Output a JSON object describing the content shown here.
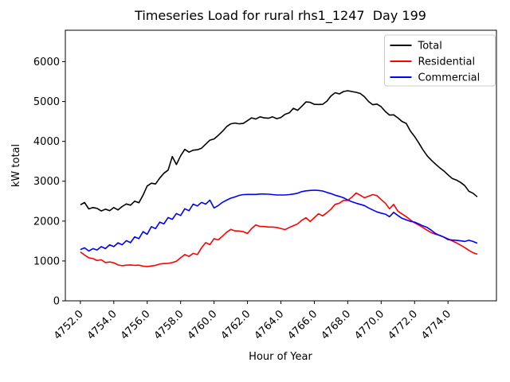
{
  "window": {
    "title": "Timeseries Load for rural rhs1_1247  Day 199"
  },
  "colors": {
    "background": "#ffffff",
    "axes": "#000000",
    "legend_border": "#cccccc",
    "total": "#000000",
    "residential": "#ff0000",
    "commercial": "#0000ff"
  },
  "chart_data": {
    "type": "line",
    "title": "Timeseries Load for rural rhs1_1247  Day 199",
    "xlabel": "Hour of Year",
    "ylabel": "kW total",
    "xlim": [
      4751.1,
      4776.9
    ],
    "ylim": [
      0,
      6788
    ],
    "grid": false,
    "x_ticks": [
      4752,
      4754,
      4756,
      4758,
      4760,
      4762,
      4764,
      4766,
      4768,
      4770,
      4772,
      4774
    ],
    "x_tick_labels": [
      "4752.0",
      "4754.0",
      "4756.0",
      "4758.0",
      "4760.0",
      "4762.0",
      "4764.0",
      "4766.0",
      "4768.0",
      "4770.0",
      "4772.0",
      "4774.0"
    ],
    "x_tick_rotation": 45,
    "y_ticks": [
      0,
      1000,
      2000,
      3000,
      4000,
      5000,
      6000
    ],
    "y_tick_labels": [
      "0",
      "1000",
      "2000",
      "3000",
      "4000",
      "5000",
      "6000"
    ],
    "legend": {
      "position": "upper right",
      "entries": [
        "Total",
        "Residential",
        "Commercial"
      ]
    },
    "hours": [
      4752.0,
      4752.25,
      4752.5,
      4752.75,
      4753.0,
      4753.25,
      4753.5,
      4753.75,
      4754.0,
      4754.25,
      4754.5,
      4754.75,
      4755.0,
      4755.25,
      4755.5,
      4755.75,
      4756.0,
      4756.25,
      4756.5,
      4756.75,
      4757.0,
      4757.25,
      4757.5,
      4757.75,
      4758.0,
      4758.25,
      4758.5,
      4758.75,
      4759.0,
      4759.25,
      4759.5,
      4759.75,
      4760.0,
      4760.25,
      4760.5,
      4760.75,
      4761.0,
      4761.25,
      4761.5,
      4761.75,
      4762.0,
      4762.25,
      4762.5,
      4762.75,
      4763.0,
      4763.25,
      4763.5,
      4763.75,
      4764.0,
      4764.25,
      4764.5,
      4764.75,
      4765.0,
      4765.25,
      4765.5,
      4765.75,
      4766.0,
      4766.25,
      4766.5,
      4766.75,
      4767.0,
      4767.25,
      4767.5,
      4767.75,
      4768.0,
      4768.25,
      4768.5,
      4768.75,
      4769.0,
      4769.25,
      4769.5,
      4769.75,
      4770.0,
      4770.25,
      4770.5,
      4770.75,
      4771.0,
      4771.25,
      4771.5,
      4771.75,
      4772.0,
      4772.25,
      4772.5,
      4772.75,
      4773.0,
      4773.25,
      4773.5,
      4773.75,
      4774.0,
      4774.25,
      4774.5,
      4774.75,
      4775.0,
      4775.25,
      4775.5,
      4775.75
    ],
    "series": [
      {
        "name": "Total",
        "color": "#000000",
        "values": [
          2410,
          2465,
          2305,
          2340,
          2320,
          2255,
          2300,
          2260,
          2340,
          2280,
          2365,
          2430,
          2400,
          2500,
          2460,
          2650,
          2880,
          2950,
          2930,
          3080,
          3200,
          3280,
          3620,
          3420,
          3640,
          3800,
          3730,
          3780,
          3790,
          3830,
          3930,
          4030,
          4060,
          4150,
          4250,
          4370,
          4440,
          4460,
          4440,
          4450,
          4520,
          4590,
          4560,
          4615,
          4590,
          4580,
          4615,
          4570,
          4600,
          4680,
          4715,
          4830,
          4780,
          4880,
          4990,
          4980,
          4930,
          4925,
          4930,
          5010,
          5140,
          5220,
          5190,
          5250,
          5270,
          5250,
          5230,
          5200,
          5120,
          5000,
          4920,
          4935,
          4870,
          4750,
          4660,
          4665,
          4590,
          4500,
          4450,
          4260,
          4120,
          3960,
          3790,
          3640,
          3530,
          3430,
          3340,
          3260,
          3160,
          3070,
          3030,
          2970,
          2890,
          2750,
          2700,
          2610
        ]
      },
      {
        "name": "Residential",
        "color": "#ff0000",
        "values": [
          1225,
          1150,
          1080,
          1060,
          1010,
          1030,
          960,
          975,
          955,
          900,
          880,
          895,
          900,
          890,
          895,
          870,
          860,
          875,
          890,
          925,
          935,
          940,
          960,
          995,
          1080,
          1160,
          1115,
          1190,
          1160,
          1330,
          1460,
          1410,
          1560,
          1530,
          1620,
          1720,
          1790,
          1755,
          1750,
          1735,
          1690,
          1815,
          1905,
          1865,
          1865,
          1850,
          1850,
          1840,
          1815,
          1785,
          1840,
          1885,
          1930,
          2020,
          2085,
          1990,
          2085,
          2185,
          2130,
          2210,
          2300,
          2420,
          2450,
          2520,
          2520,
          2600,
          2705,
          2650,
          2585,
          2625,
          2665,
          2640,
          2540,
          2450,
          2310,
          2420,
          2250,
          2180,
          2110,
          2030,
          1955,
          1900,
          1840,
          1770,
          1710,
          1670,
          1645,
          1600,
          1555,
          1505,
          1455,
          1395,
          1335,
          1265,
          1205,
          1170
        ]
      },
      {
        "name": "Commercial",
        "color": "#0000ff",
        "values": [
          1285,
          1330,
          1250,
          1310,
          1275,
          1360,
          1310,
          1405,
          1360,
          1455,
          1405,
          1510,
          1460,
          1605,
          1560,
          1735,
          1670,
          1860,
          1810,
          1975,
          1930,
          2090,
          2045,
          2190,
          2140,
          2310,
          2260,
          2425,
          2380,
          2470,
          2425,
          2525,
          2330,
          2390,
          2470,
          2525,
          2575,
          2605,
          2645,
          2665,
          2670,
          2670,
          2670,
          2680,
          2680,
          2675,
          2665,
          2655,
          2655,
          2655,
          2665,
          2680,
          2700,
          2740,
          2760,
          2770,
          2775,
          2770,
          2755,
          2720,
          2690,
          2650,
          2620,
          2585,
          2530,
          2485,
          2450,
          2420,
          2390,
          2330,
          2280,
          2230,
          2200,
          2175,
          2110,
          2220,
          2140,
          2070,
          2030,
          1995,
          1975,
          1930,
          1880,
          1840,
          1770,
          1690,
          1640,
          1600,
          1535,
          1525,
          1520,
          1505,
          1490,
          1520,
          1490,
          1445
        ]
      }
    ]
  }
}
